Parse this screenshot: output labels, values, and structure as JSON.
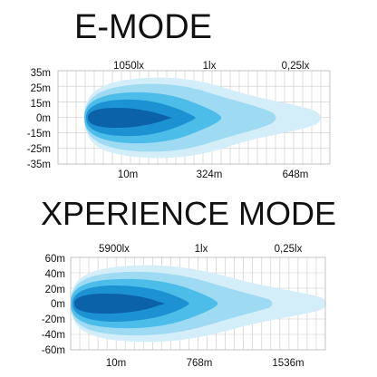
{
  "chart_data": [
    {
      "type": "area",
      "title": "E-MODE",
      "y_ticks": [
        "35m",
        "25m",
        "15m",
        "0m",
        "-15m",
        "-25m",
        "-35m"
      ],
      "ylim": [
        -35,
        35
      ],
      "x_labels": [
        "10m",
        "324m",
        "648m"
      ],
      "lux_labels": [
        "1050lx",
        "1lx",
        "0,25lx"
      ],
      "colors": [
        "#d4eef9",
        "#9fdaf3",
        "#4cbde8",
        "#1c92d3",
        "#0b62a8"
      ],
      "grid": true
    },
    {
      "type": "area",
      "title": "XPERIENCE MODE",
      "y_ticks": [
        "60m",
        "40m",
        "20m",
        "0m",
        "-20m",
        "-40m",
        "-60m"
      ],
      "ylim": [
        -60,
        60
      ],
      "x_labels": [
        "10m",
        "768m",
        "1536m"
      ],
      "lux_labels": [
        "5900lx",
        "1lx",
        "0,25lx"
      ],
      "colors": [
        "#d4eef9",
        "#9fdaf3",
        "#4cbde8",
        "#1c92d3",
        "#0b62a8"
      ],
      "grid": true
    }
  ]
}
